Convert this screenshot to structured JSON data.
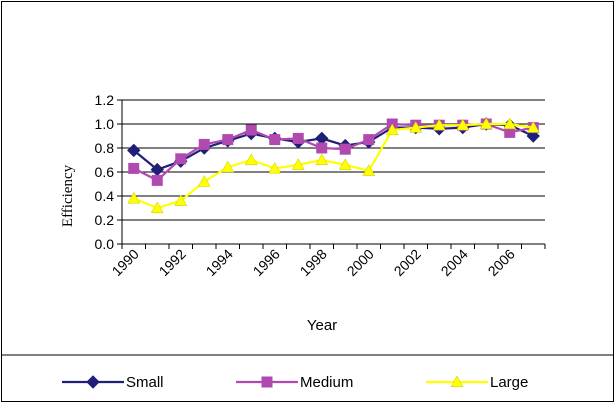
{
  "chart_data": {
    "type": "line",
    "title": "",
    "xlabel": "Year",
    "ylabel": "Efficiency",
    "x": [
      1990,
      1991,
      1992,
      1993,
      1994,
      1995,
      1996,
      1997,
      1998,
      1999,
      2000,
      2001,
      2002,
      2003,
      2004,
      2005,
      2006,
      2007
    ],
    "x_tick_labels": [
      "1990",
      "1992",
      "1994",
      "1996",
      "1998",
      "2000",
      "2002",
      "2004",
      "2006"
    ],
    "ylim": [
      0,
      1.2
    ],
    "y_tick_labels": [
      "0.0",
      "0.2",
      "0.4",
      "0.6",
      "0.8",
      "1.0",
      "1.2"
    ],
    "grid": "horizontal",
    "legend_position": "bottom",
    "series": [
      {
        "name": "Small",
        "color": "#1f1f7a",
        "marker": "diamond",
        "values": [
          0.78,
          0.62,
          0.69,
          0.8,
          0.86,
          0.92,
          0.88,
          0.85,
          0.88,
          0.82,
          0.85,
          0.97,
          0.97,
          0.96,
          0.97,
          1.0,
          0.99,
          0.9
        ]
      },
      {
        "name": "Medium",
        "color": "#b04ab0",
        "marker": "square",
        "values": [
          0.63,
          0.53,
          0.71,
          0.83,
          0.87,
          0.95,
          0.87,
          0.88,
          0.8,
          0.79,
          0.87,
          1.0,
          0.99,
          0.99,
          0.99,
          1.0,
          0.93,
          0.97
        ]
      },
      {
        "name": "Large",
        "color": "#ffff00",
        "marker": "triangle",
        "values": [
          0.38,
          0.3,
          0.36,
          0.52,
          0.64,
          0.7,
          0.63,
          0.66,
          0.7,
          0.66,
          0.61,
          0.95,
          0.97,
          0.99,
          0.99,
          1.0,
          1.0,
          0.97
        ]
      }
    ]
  }
}
